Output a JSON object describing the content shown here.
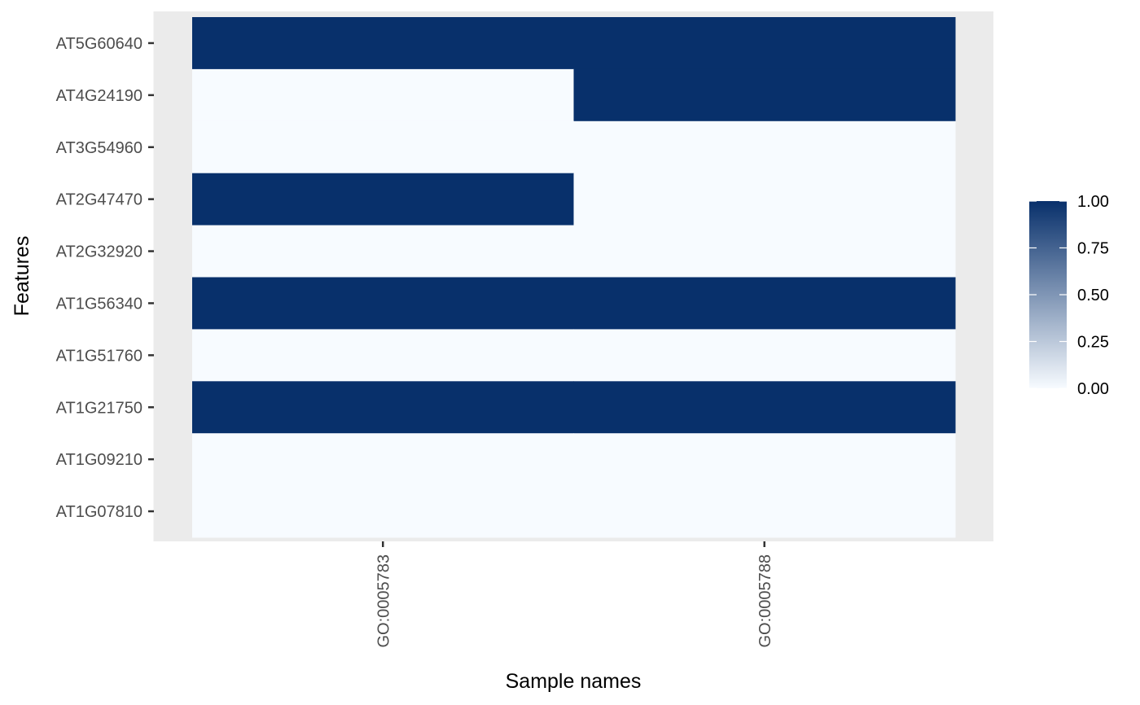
{
  "chart_data": {
    "type": "heatmap",
    "xlabel": "Sample names",
    "ylabel": "Features",
    "x_categories": [
      "GO:0005783",
      "GO:0005788"
    ],
    "y_categories": [
      "AT5G60640",
      "AT4G24190",
      "AT3G54960",
      "AT2G47470",
      "AT2G32920",
      "AT1G56340",
      "AT1G51760",
      "AT1G21750",
      "AT1G09210",
      "AT1G07810"
    ],
    "values": [
      [
        1,
        1
      ],
      [
        0,
        1
      ],
      [
        0,
        0
      ],
      [
        1,
        0
      ],
      [
        0,
        0
      ],
      [
        1,
        1
      ],
      [
        0,
        0
      ],
      [
        1,
        1
      ],
      [
        0,
        0
      ],
      [
        0,
        0
      ]
    ],
    "value_range": [
      0,
      1
    ],
    "legend": {
      "title": "",
      "position": "right",
      "ticks": [
        "1.00",
        "0.75",
        "0.50",
        "0.25",
        "0.00"
      ],
      "tick_values": [
        1.0,
        0.75,
        0.5,
        0.25,
        0.0
      ]
    },
    "colors": {
      "low": "#f7fbff",
      "high": "#08306b",
      "panel_background": "#ebebeb"
    },
    "grid": false
  }
}
